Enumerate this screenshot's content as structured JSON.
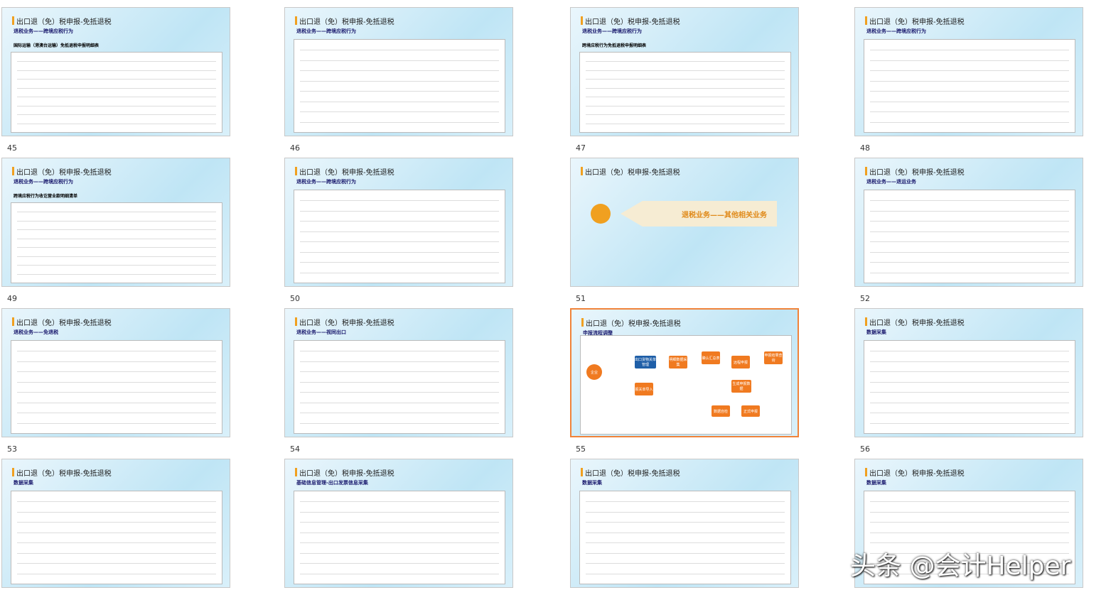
{
  "slide_numbers": [
    "45",
    "46",
    "47",
    "48",
    "49",
    "50",
    "51",
    "52",
    "53",
    "54",
    "55",
    "56"
  ],
  "watermark": "头条 @会计Helper",
  "slides": [
    {
      "title": "出口退（免）税申报-免抵退税",
      "subtitle": "退税业务——跨境应税行为",
      "heading": "国际运输（港澳台运输）免抵退税申报明细表"
    },
    {
      "title": "出口退（免）税申报-免抵退税",
      "subtitle": "退税业务——跨境应税行为"
    },
    {
      "title": "出口退（免）税申报-免抵退税",
      "subtitle": "退税业务——跨境应税行为",
      "heading": "跨境应税行为免抵退税申报明细表"
    },
    {
      "title": "出口退（免）税申报-免抵退税",
      "subtitle": "退税业务——跨境应税行为"
    },
    {
      "title": "出口退（免）税申报-免抵退税",
      "subtitle": "退税业务——跨境应税行为",
      "heading": "跨境应税行为收讫营业款明细清单"
    },
    {
      "title": "出口退（免）税申报-免抵退税",
      "subtitle": "退税业务——跨境应税行为"
    },
    {
      "title": "出口退（免）税申报-免抵退税",
      "banner": "退税业务——其他相关业务"
    },
    {
      "title": "出口退（免）税申报-免抵退税",
      "subtitle": "退税业务——退运业务"
    },
    {
      "title": "出口退（免）税申报-免抵退税",
      "subtitle": "退税业务——免退税"
    },
    {
      "title": "出口退（免）税申报-免抵退税",
      "subtitle": "退税业务——视同出口"
    },
    {
      "title": "出口退（免）税申报-免抵退税",
      "subtitle": "申报流程调整",
      "nodes": [
        "企业",
        "出口货物关单管理",
        "明细数据采集",
        "确认汇总表",
        "远程申报",
        "申报结果查询",
        "报关单导入",
        "生成申报数据",
        "数据自检",
        "正式申报"
      ]
    },
    {
      "title": "出口退（免）税申报-免抵退税",
      "subtitle": "数据采集"
    },
    {
      "title": "出口退（免）税申报-免抵退税",
      "subtitle": "数据采集"
    },
    {
      "title": "出口退（免）税申报-免抵退税",
      "subtitle": "基础信息管理-出口发票信息采集"
    },
    {
      "title": "出口退（免）税申报-免抵退税",
      "subtitle": "数据采集"
    },
    {
      "title": "出口退（免）税申报-免抵退税",
      "subtitle": "数据采集"
    }
  ]
}
